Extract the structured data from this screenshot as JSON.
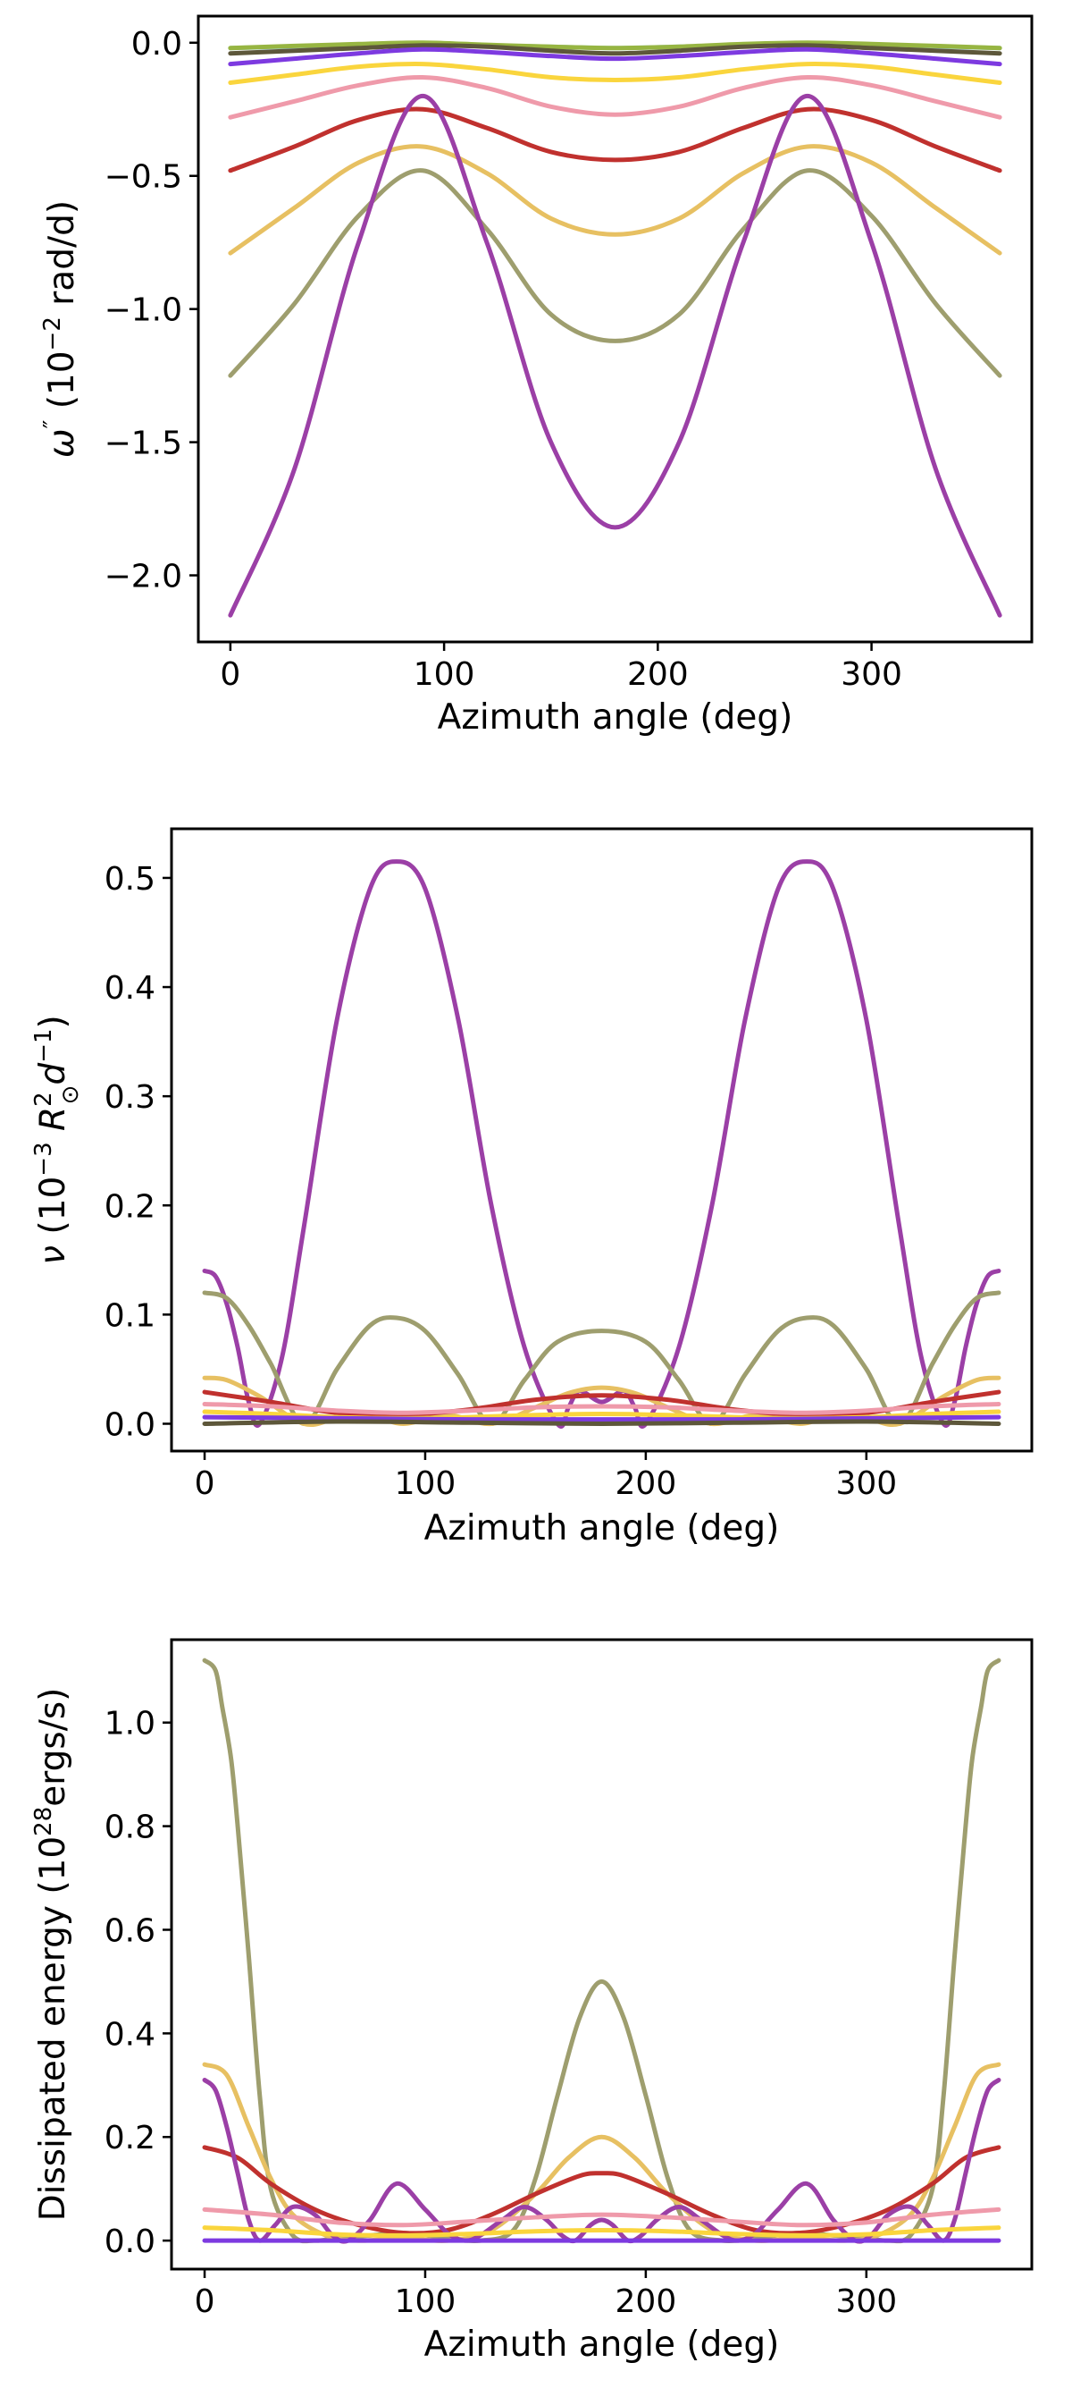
{
  "figure": "Three stacked line charts versus azimuth angle",
  "colors": {
    "olive": "#9e9e6e",
    "purple": "#9b3fa6",
    "tan": "#e7c062",
    "red": "#c0312e",
    "pink": "#ef9aaa",
    "gold": "#fad53d",
    "violet": "#7d3ae0",
    "darkolive": "#5d573a",
    "lightgreen": "#97b542",
    "lightblue": "#a3d8e6"
  },
  "chart_data": [
    {
      "type": "line",
      "title": "",
      "xlabel": "Azimuth angle (deg)",
      "ylabel_main": "ω",
      "ylabel_sup": "″",
      "ylabel_rest_a": " (10",
      "ylabel_exp": "−2",
      "ylabel_rest_b": " rad/d)",
      "xlim": [
        -15,
        375
      ],
      "ylim": [
        -2.25,
        0.1
      ],
      "xticks": [
        0,
        100,
        200,
        300
      ],
      "xtick_labels": [
        "0",
        "100",
        "200",
        "300"
      ],
      "yticks": [
        0.0,
        -0.5,
        -1.0,
        -1.5,
        -2.0
      ],
      "ytick_labels": [
        "0.0",
        "−0.5",
        "−1.0",
        "−1.5",
        "−2.0"
      ],
      "x_samples_deg": [
        0,
        30,
        60,
        90,
        120,
        150,
        180,
        210,
        240,
        270,
        300,
        330,
        360
      ],
      "series": [
        {
          "name": "lightblue",
          "values": [
            -0.02,
            -0.015,
            -0.01,
            -0.005,
            -0.01,
            -0.015,
            -0.02,
            -0.015,
            -0.01,
            -0.005,
            -0.01,
            -0.015,
            -0.02
          ]
        },
        {
          "name": "lightgreen",
          "values": [
            -0.02,
            -0.012,
            -0.005,
            0.0,
            -0.008,
            -0.015,
            -0.02,
            -0.015,
            -0.005,
            0.0,
            -0.005,
            -0.012,
            -0.02
          ]
        },
        {
          "name": "darkolive",
          "values": [
            -0.04,
            -0.03,
            -0.02,
            -0.01,
            -0.015,
            -0.03,
            -0.04,
            -0.03,
            -0.015,
            -0.01,
            -0.02,
            -0.03,
            -0.04
          ]
        },
        {
          "name": "violet",
          "values": [
            -0.08,
            -0.06,
            -0.04,
            -0.025,
            -0.035,
            -0.05,
            -0.06,
            -0.05,
            -0.035,
            -0.025,
            -0.04,
            -0.06,
            -0.08
          ]
        },
        {
          "name": "gold",
          "values": [
            -0.15,
            -0.12,
            -0.09,
            -0.08,
            -0.1,
            -0.13,
            -0.14,
            -0.13,
            -0.1,
            -0.08,
            -0.09,
            -0.12,
            -0.15
          ]
        },
        {
          "name": "pink",
          "values": [
            -0.28,
            -0.22,
            -0.16,
            -0.13,
            -0.17,
            -0.24,
            -0.27,
            -0.24,
            -0.17,
            -0.13,
            -0.16,
            -0.22,
            -0.28
          ]
        },
        {
          "name": "red",
          "values": [
            -0.48,
            -0.39,
            -0.29,
            -0.25,
            -0.32,
            -0.41,
            -0.44,
            -0.41,
            -0.32,
            -0.25,
            -0.29,
            -0.39,
            -0.48
          ]
        },
        {
          "name": "tan",
          "values": [
            -0.79,
            -0.62,
            -0.45,
            -0.39,
            -0.49,
            -0.66,
            -0.72,
            -0.66,
            -0.49,
            -0.39,
            -0.45,
            -0.62,
            -0.79
          ]
        },
        {
          "name": "olive",
          "values": [
            -1.25,
            -0.98,
            -0.65,
            -0.48,
            -0.7,
            -1.02,
            -1.12,
            -1.02,
            -0.7,
            -0.48,
            -0.65,
            -0.98,
            -1.25
          ]
        },
        {
          "name": "purple",
          "values": [
            -2.15,
            -1.6,
            -0.75,
            -0.2,
            -0.75,
            -1.5,
            -1.82,
            -1.5,
            -0.75,
            -0.2,
            -0.75,
            -1.6,
            -2.15
          ]
        }
      ]
    },
    {
      "type": "line",
      "title": "",
      "xlabel": "Azimuth angle (deg)",
      "ylabel_main": "ν",
      "ylabel_rest_a": " (10",
      "ylabel_exp": "−3",
      "ylabel_r": " R",
      "ylabel_rsup": "2",
      "ylabel_rsub": "⊙",
      "ylabel_d": "d",
      "ylabel_dexp": "−1",
      "ylabel_close": ")",
      "xlim": [
        -15,
        375
      ],
      "ylim": [
        -0.025,
        0.545
      ],
      "xticks": [
        0,
        100,
        200,
        300
      ],
      "xtick_labels": [
        "0",
        "100",
        "200",
        "300"
      ],
      "yticks": [
        0.0,
        0.1,
        0.2,
        0.3,
        0.4,
        0.5
      ],
      "ytick_labels": [
        "0.0",
        "0.1",
        "0.2",
        "0.3",
        "0.4",
        "0.5"
      ],
      "series": [
        {
          "name": "purple",
          "x": [
            0,
            5,
            10,
            15,
            20,
            25,
            35,
            45,
            60,
            75,
            87,
            100,
            115,
            130,
            145,
            160,
            165,
            170,
            180,
            190,
            195,
            200,
            215,
            230,
            245,
            260,
            273,
            285,
            300,
            315,
            325,
            335,
            340,
            345,
            350,
            355,
            360
          ],
          "values": [
            0.14,
            0.135,
            0.11,
            0.07,
            0.02,
            0.0,
            0.06,
            0.18,
            0.37,
            0.49,
            0.515,
            0.49,
            0.37,
            0.2,
            0.07,
            0.0,
            0.015,
            0.03,
            0.02,
            0.03,
            0.015,
            0.0,
            0.07,
            0.2,
            0.37,
            0.49,
            0.515,
            0.49,
            0.37,
            0.18,
            0.06,
            0.0,
            0.02,
            0.07,
            0.11,
            0.135,
            0.14
          ]
        },
        {
          "name": "olive",
          "x": [
            0,
            10,
            20,
            30,
            45,
            60,
            75,
            87,
            100,
            115,
            130,
            145,
            160,
            180,
            200,
            215,
            230,
            245,
            260,
            273,
            285,
            300,
            315,
            330,
            340,
            350,
            360
          ],
          "values": [
            0.12,
            0.115,
            0.09,
            0.055,
            0.0,
            0.05,
            0.09,
            0.097,
            0.085,
            0.045,
            0.0,
            0.04,
            0.075,
            0.085,
            0.075,
            0.04,
            0.0,
            0.045,
            0.085,
            0.097,
            0.09,
            0.05,
            0.0,
            0.055,
            0.09,
            0.115,
            0.12
          ]
        },
        {
          "name": "tan",
          "x": [
            0,
            10,
            25,
            45,
            60,
            75,
            90,
            110,
            130,
            150,
            165,
            180,
            195,
            210,
            230,
            250,
            270,
            285,
            300,
            315,
            335,
            350,
            360
          ],
          "values": [
            0.042,
            0.04,
            0.025,
            0.0,
            0.005,
            0.008,
            0.0,
            0.008,
            0.0,
            0.015,
            0.028,
            0.033,
            0.028,
            0.015,
            0.0,
            0.008,
            0.0,
            0.008,
            0.005,
            0.0,
            0.025,
            0.04,
            0.042
          ]
        },
        {
          "name": "red",
          "x": [
            0,
            30,
            60,
            90,
            120,
            150,
            180,
            210,
            240,
            270,
            300,
            330,
            360
          ],
          "values": [
            0.029,
            0.02,
            0.01,
            0.008,
            0.013,
            0.022,
            0.026,
            0.022,
            0.013,
            0.008,
            0.01,
            0.02,
            0.029
          ]
        },
        {
          "name": "pink",
          "x": [
            0,
            30,
            60,
            90,
            120,
            150,
            180,
            210,
            240,
            270,
            300,
            330,
            360
          ],
          "values": [
            0.018,
            0.016,
            0.012,
            0.01,
            0.012,
            0.015,
            0.016,
            0.015,
            0.012,
            0.01,
            0.012,
            0.016,
            0.018
          ]
        },
        {
          "name": "gold",
          "x": [
            0,
            30,
            60,
            90,
            120,
            150,
            180,
            210,
            240,
            270,
            300,
            330,
            360
          ],
          "values": [
            0.011,
            0.009,
            0.006,
            0.005,
            0.006,
            0.008,
            0.009,
            0.008,
            0.006,
            0.005,
            0.006,
            0.009,
            0.011
          ]
        },
        {
          "name": "violet",
          "x": [
            0,
            60,
            120,
            180,
            240,
            300,
            360
          ],
          "values": [
            0.006,
            0.005,
            0.004,
            0.004,
            0.004,
            0.005,
            0.006
          ]
        },
        {
          "name": "darkolive",
          "x": [
            0,
            60,
            120,
            180,
            240,
            300,
            360
          ],
          "values": [
            0.0,
            0.002,
            0.001,
            0.0,
            0.001,
            0.002,
            0.0
          ]
        }
      ]
    },
    {
      "type": "line",
      "title": "",
      "xlabel": "Azimuth angle (deg)",
      "ylabel_rest_a": "Dissipated energy (10",
      "ylabel_exp": "28",
      "ylabel_rest_b": "ergs/s)",
      "xlim": [
        -15,
        375
      ],
      "ylim": [
        -0.055,
        1.16
      ],
      "xticks": [
        0,
        100,
        200,
        300
      ],
      "xtick_labels": [
        "0",
        "100",
        "200",
        "300"
      ],
      "yticks": [
        0.0,
        0.2,
        0.4,
        0.6,
        0.8,
        1.0
      ],
      "ytick_labels": [
        "0.0",
        "0.2",
        "0.4",
        "0.6",
        "0.8",
        "1.0"
      ],
      "series": [
        {
          "name": "olive",
          "x": [
            0,
            5,
            8,
            12,
            15,
            20,
            25,
            30,
            40,
            50,
            60,
            75,
            90,
            110,
            125,
            140,
            150,
            160,
            170,
            180,
            190,
            200,
            210,
            220,
            235,
            250,
            270,
            285,
            300,
            310,
            320,
            330,
            335,
            340,
            345,
            348,
            352,
            355,
            360
          ],
          "values": [
            1.12,
            1.1,
            1.03,
            0.93,
            0.8,
            0.55,
            0.28,
            0.1,
            0.01,
            0.0,
            0.005,
            0.01,
            0.015,
            0.005,
            0.0,
            0.02,
            0.12,
            0.28,
            0.43,
            0.5,
            0.43,
            0.28,
            0.12,
            0.02,
            0.0,
            0.005,
            0.015,
            0.01,
            0.005,
            0.0,
            0.01,
            0.1,
            0.28,
            0.55,
            0.8,
            0.93,
            1.03,
            1.1,
            1.12
          ]
        },
        {
          "name": "tan",
          "x": [
            0,
            10,
            20,
            30,
            40,
            55,
            70,
            90,
            110,
            130,
            150,
            165,
            180,
            195,
            210,
            230,
            250,
            270,
            290,
            305,
            320,
            330,
            340,
            350,
            360
          ],
          "values": [
            0.34,
            0.32,
            0.22,
            0.12,
            0.05,
            0.01,
            0.0,
            0.005,
            0.0,
            0.02,
            0.09,
            0.16,
            0.2,
            0.16,
            0.09,
            0.02,
            0.0,
            0.005,
            0.0,
            0.01,
            0.05,
            0.12,
            0.22,
            0.32,
            0.34
          ]
        },
        {
          "name": "red",
          "x": [
            0,
            15,
            30,
            50,
            70,
            90,
            110,
            130,
            150,
            170,
            180,
            190,
            210,
            230,
            250,
            270,
            290,
            310,
            330,
            345,
            360
          ],
          "values": [
            0.18,
            0.16,
            0.11,
            0.06,
            0.03,
            0.015,
            0.02,
            0.05,
            0.09,
            0.125,
            0.13,
            0.125,
            0.09,
            0.05,
            0.02,
            0.015,
            0.03,
            0.06,
            0.11,
            0.16,
            0.18
          ]
        },
        {
          "name": "purple",
          "x": [
            0,
            5,
            10,
            15,
            20,
            25,
            32,
            40,
            50,
            58,
            65,
            75,
            87,
            100,
            110,
            118,
            125,
            135,
            145,
            155,
            162,
            168,
            175,
            180,
            185,
            192,
            198,
            205,
            215,
            225,
            235,
            242,
            250,
            260,
            273,
            285,
            295,
            302,
            310,
            320,
            328,
            335,
            340,
            345,
            350,
            355,
            360
          ],
          "values": [
            0.31,
            0.29,
            0.22,
            0.13,
            0.04,
            0.0,
            0.03,
            0.065,
            0.05,
            0.01,
            0.0,
            0.04,
            0.11,
            0.06,
            0.015,
            0.0,
            0.01,
            0.04,
            0.065,
            0.04,
            0.01,
            0.0,
            0.03,
            0.04,
            0.03,
            0.0,
            0.01,
            0.04,
            0.065,
            0.04,
            0.01,
            0.0,
            0.015,
            0.06,
            0.11,
            0.04,
            0.0,
            0.01,
            0.05,
            0.065,
            0.03,
            0.0,
            0.04,
            0.13,
            0.22,
            0.29,
            0.31
          ]
        },
        {
          "name": "pink",
          "x": [
            0,
            30,
            60,
            90,
            120,
            150,
            180,
            210,
            240,
            270,
            300,
            330,
            360
          ],
          "values": [
            0.06,
            0.05,
            0.035,
            0.03,
            0.037,
            0.045,
            0.05,
            0.045,
            0.037,
            0.03,
            0.035,
            0.05,
            0.06
          ]
        },
        {
          "name": "gold",
          "x": [
            0,
            30,
            60,
            90,
            120,
            150,
            180,
            210,
            240,
            270,
            300,
            330,
            360
          ],
          "values": [
            0.025,
            0.02,
            0.012,
            0.01,
            0.013,
            0.018,
            0.02,
            0.018,
            0.013,
            0.01,
            0.012,
            0.02,
            0.025
          ]
        },
        {
          "name": "violet",
          "x": [
            0,
            60,
            120,
            180,
            240,
            300,
            360
          ],
          "values": [
            0.0,
            0.0,
            0.0,
            0.0,
            0.0,
            0.0,
            0.0
          ]
        }
      ]
    }
  ]
}
